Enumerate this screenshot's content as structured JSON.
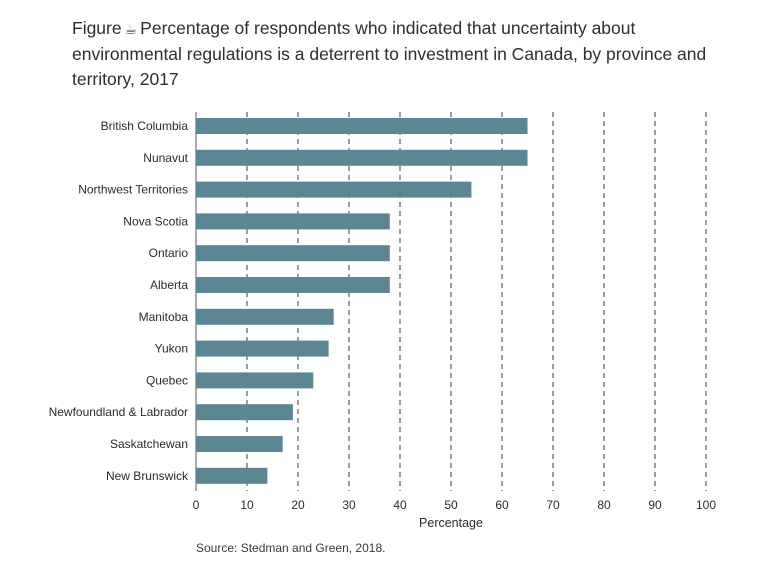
{
  "figure": {
    "prefix": "Figure",
    "icon": "coffee-cup-icon",
    "title": "Percentage of respondents who indicated that uncertainty about environmental regulations is a deterrent to investment in Canada, by province and territory, 2017"
  },
  "source": "Source: Stedman and Green, 2018.",
  "colors": {
    "bar": "#5b8795",
    "gridline": "#3a3a3a",
    "axis": "#555555"
  },
  "chart_data": {
    "type": "bar",
    "orientation": "horizontal",
    "title": "Percentage of respondents who indicated that uncertainty about environmental regulations is a deterrent to investment in Canada, by province and territory, 2017",
    "xlabel": "Percentage",
    "ylabel": "",
    "xlim": [
      0,
      100
    ],
    "xticks": [
      0,
      10,
      20,
      30,
      40,
      50,
      60,
      70,
      80,
      90,
      100
    ],
    "grid": "vertical dashed",
    "categories": [
      "British Columbia",
      "Nunavut",
      "Northwest Territories",
      "Nova Scotia",
      "Ontario",
      "Alberta",
      "Manitoba",
      "Yukon",
      "Quebec",
      "Newfoundland & Labrador",
      "Saskatchewan",
      "New Brunswick"
    ],
    "values": [
      65,
      65,
      54,
      38,
      38,
      38,
      27,
      26,
      23,
      19,
      17,
      14
    ]
  }
}
